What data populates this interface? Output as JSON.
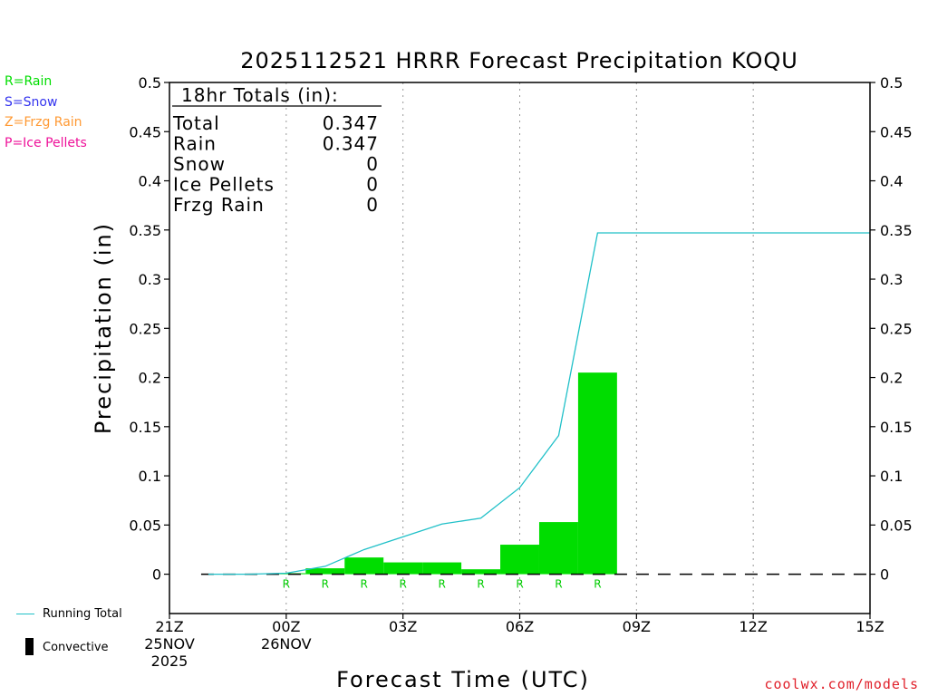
{
  "colors": {
    "rain": "#00dd00",
    "snow": "#3333ee",
    "frzg": "#ff9933",
    "ice": "#ee1199",
    "running": "#20c0c8",
    "credit": "#e0202a"
  },
  "legend": {
    "rain": "R=Rain",
    "snow": "S=Snow",
    "frzg": "Z=Frzg Rain",
    "ice": "P=Ice Pellets"
  },
  "bottom_legend": {
    "running_total": "Running Total",
    "convective": "Convective"
  },
  "credit": "coolwx.com/models",
  "totals_box": {
    "header": "18hr Totals (in):",
    "rows": [
      {
        "label": "Total",
        "value": "0.347"
      },
      {
        "label": "Rain",
        "value": "0.347"
      },
      {
        "label": "Snow",
        "value": "0"
      },
      {
        "label": "Ice Pellets",
        "value": "0"
      },
      {
        "label": "Frzg Rain",
        "value": "0"
      }
    ]
  },
  "chart_data": {
    "type": "bar",
    "title": "2025112521 HRRR Forecast Precipitation KOQU",
    "xlabel": "Forecast Time (UTC)",
    "ylabel": "Precipitation (in)",
    "ylim": [
      -0.04,
      0.5
    ],
    "xlim_hours": [
      0,
      18
    ],
    "yticks": [
      "0",
      "0.05",
      "0.1",
      "0.15",
      "0.2",
      "0.25",
      "0.3",
      "0.35",
      "0.4",
      "0.45",
      "0.5"
    ],
    "xticks": [
      {
        "hour": 0,
        "lines": [
          "21Z",
          "25NOV",
          "2025"
        ]
      },
      {
        "hour": 3,
        "lines": [
          "00Z",
          "26NOV"
        ]
      },
      {
        "hour": 6,
        "lines": [
          "03Z"
        ]
      },
      {
        "hour": 9,
        "lines": [
          "06Z"
        ]
      },
      {
        "hour": 12,
        "lines": [
          "09Z"
        ]
      },
      {
        "hour": 15,
        "lines": [
          "12Z"
        ]
      },
      {
        "hour": 18,
        "lines": [
          "15Z"
        ]
      }
    ],
    "hourly_precip": {
      "hours": [
        1,
        2,
        3,
        4,
        5,
        6,
        7,
        8,
        9,
        10,
        11,
        12,
        13,
        14,
        15,
        16,
        17,
        18
      ],
      "values": [
        0,
        0,
        0.001,
        0.006,
        0.017,
        0.012,
        0.012,
        0.005,
        0.03,
        0.053,
        0.205,
        0,
        0,
        0,
        0,
        0,
        0,
        0
      ],
      "type_labels": [
        "",
        "",
        "R",
        "R",
        "R",
        "R",
        "R",
        "R",
        "R",
        "R",
        "R",
        "",
        "",
        "",
        "",
        "",
        "",
        ""
      ]
    },
    "running_total": {
      "name": "Running Total",
      "hours": [
        1,
        2,
        3,
        4,
        5,
        6,
        7,
        8,
        9,
        10,
        11,
        12,
        13,
        14,
        15,
        16,
        17,
        18
      ],
      "values": [
        0,
        0,
        0.001,
        0.008,
        0.025,
        0.038,
        0.051,
        0.057,
        0.088,
        0.141,
        0.347,
        0.347,
        0.347,
        0.347,
        0.347,
        0.347,
        0.347,
        0.347
      ]
    },
    "convective_values": [
      0,
      0,
      0,
      0,
      0,
      0,
      0,
      0,
      0,
      0,
      0,
      0,
      0,
      0,
      0,
      0,
      0,
      0
    ]
  }
}
